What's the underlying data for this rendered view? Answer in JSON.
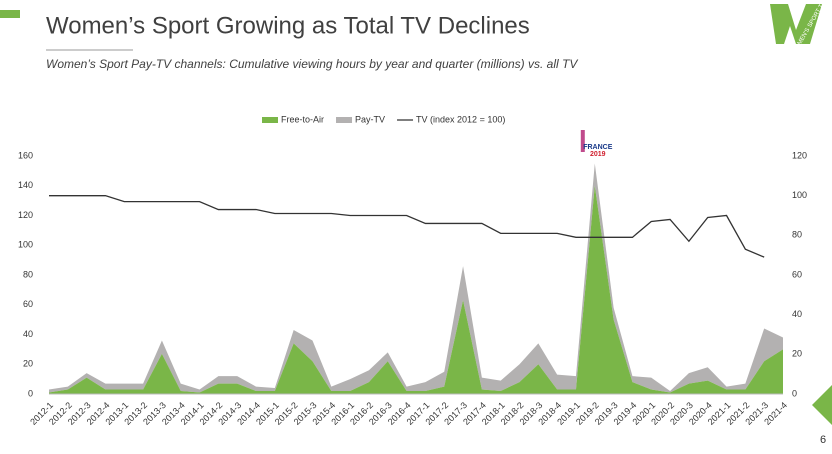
{
  "header": {
    "title": "Women’s Sport Growing as Total TV Declines",
    "subtitle": "Women’s Sport Pay-TV channels: Cumulative viewing hours by year and quarter (millions) vs. all TV",
    "logo_text": "WOMEN'S SPORT TRUST",
    "page_number": "6"
  },
  "chart_data": {
    "type": "stacked_area",
    "categories": [
      "2012-1",
      "2012-2",
      "2012-3",
      "2012-4",
      "2013-1",
      "2013-2",
      "2013-3",
      "2013-4",
      "2014-1",
      "2014-2",
      "2014-3",
      "2014-4",
      "2015-1",
      "2015-2",
      "2015-3",
      "2015-4",
      "2016-1",
      "2016-2",
      "2016-3",
      "2016-4",
      "2017-1",
      "2017-2",
      "2017-3",
      "2017-4",
      "2018-1",
      "2018-2",
      "2018-3",
      "2018-4",
      "2019-1",
      "2019-2",
      "2019-3",
      "2019-4",
      "2020-1",
      "2020-2",
      "2020-3",
      "2020-4",
      "2021-1",
      "2021-2",
      "2021-3",
      "2021-4"
    ],
    "series": [
      {
        "name": "Free-to-Air",
        "color": "#7ab648",
        "values": [
          1,
          3,
          11,
          3,
          3,
          3,
          27,
          2,
          1,
          7,
          7,
          2,
          2,
          34,
          22,
          2,
          2,
          8,
          22,
          2,
          2,
          5,
          63,
          3,
          2,
          8,
          20,
          3,
          3,
          140,
          50,
          8,
          3,
          1,
          7,
          9,
          3,
          3,
          22,
          30
        ]
      },
      {
        "name": "Pay-TV",
        "color": "#b3b1b1",
        "values": [
          2,
          2,
          3,
          4,
          4,
          4,
          9,
          5,
          2,
          5,
          5,
          3,
          2,
          9,
          14,
          3,
          8,
          8,
          6,
          3,
          6,
          10,
          23,
          8,
          7,
          12,
          14,
          10,
          9,
          15,
          8,
          4,
          8,
          1,
          7,
          9,
          2,
          4,
          22,
          8
        ]
      },
      {
        "name": "TV (index 2012 = 100)",
        "color": "#333333",
        "axis": "y2",
        "values": [
          100,
          100,
          100,
          100,
          97,
          97,
          97,
          97,
          97,
          93,
          93,
          93,
          91,
          91,
          91,
          91,
          90,
          90,
          90,
          90,
          86,
          86,
          86,
          86,
          81,
          81,
          81,
          81,
          79,
          79,
          79,
          79,
          87,
          88,
          77,
          89,
          90,
          73,
          69,
          null
        ]
      }
    ],
    "ylim": [
      0,
      160
    ],
    "yticks": [
      0,
      20,
      40,
      60,
      80,
      100,
      120,
      140,
      160
    ],
    "y2lim": [
      0,
      120
    ],
    "y2ticks": [
      0,
      20,
      40,
      60,
      80,
      100,
      120
    ],
    "legend": "top",
    "annotations": [
      "FRANCE",
      "2019"
    ]
  }
}
